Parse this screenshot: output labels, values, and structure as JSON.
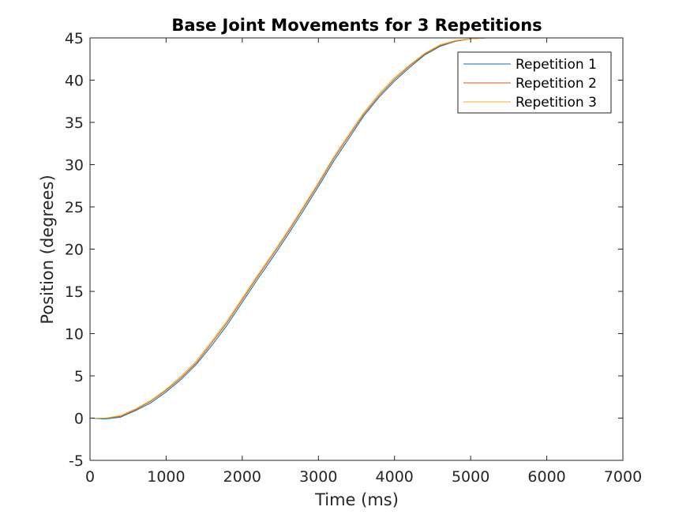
{
  "chart_data": {
    "type": "line",
    "title": "Base Joint Movements for 3 Repetitions",
    "xlabel": "Time (ms)",
    "ylabel": "Position (degrees)",
    "xlim": [
      0,
      7000
    ],
    "ylim": [
      -5,
      45
    ],
    "xticks": [
      0,
      1000,
      2000,
      3000,
      4000,
      5000,
      6000,
      7000
    ],
    "yticks": [
      -5,
      0,
      5,
      10,
      15,
      20,
      25,
      30,
      35,
      40,
      45
    ],
    "xtick_labels": [
      "0",
      "1000",
      "2000",
      "3000",
      "4000",
      "5000",
      "6000",
      "7000"
    ],
    "ytick_labels": [
      "-5",
      "0",
      "5",
      "10",
      "15",
      "20",
      "25",
      "30",
      "35",
      "40",
      "45"
    ],
    "grid": false,
    "legend_position": "top-right",
    "series": [
      {
        "name": "Repetition 1",
        "color": "#0072BD",
        "x": [
          0,
          200,
          400,
          500,
          600,
          800,
          1000,
          1200,
          1400,
          1600,
          1800,
          2000,
          2200,
          2400,
          2600,
          2800,
          3000,
          3200,
          3400,
          3600,
          3800,
          4000,
          4200,
          4400,
          4600,
          4800,
          5000,
          5200,
          5400,
          5600,
          5800,
          6000
        ],
        "y": [
          0,
          -0.1,
          0.1,
          0.5,
          0.9,
          1.8,
          3.1,
          4.6,
          6.4,
          8.6,
          11.0,
          13.7,
          16.4,
          19.0,
          21.7,
          24.5,
          27.4,
          30.4,
          33.1,
          35.8,
          38.0,
          39.9,
          41.5,
          43.0,
          44.0,
          44.6,
          44.9,
          45.0,
          45.0,
          45.0,
          45.0,
          45.0
        ]
      },
      {
        "name": "Repetition 2",
        "color": "#D95319",
        "x": [
          0,
          200,
          400,
          500,
          600,
          800,
          1000,
          1200,
          1400,
          1600,
          1800,
          2000,
          2200,
          2400,
          2600,
          2800,
          3000,
          3200,
          3400,
          3600,
          3800,
          4000,
          4200,
          4400,
          4600,
          4800,
          5000,
          5200,
          5400,
          5600,
          5800,
          6000
        ],
        "y": [
          0,
          0,
          0.2,
          0.6,
          1.0,
          2.0,
          3.3,
          4.8,
          6.6,
          8.9,
          11.3,
          14.0,
          16.7,
          19.3,
          22.0,
          24.8,
          27.7,
          30.7,
          33.4,
          36.0,
          38.2,
          40.1,
          41.7,
          43.1,
          44.1,
          44.6,
          44.9,
          45.0,
          45.0,
          45.0,
          45.0,
          45.0
        ]
      },
      {
        "name": "Repetition 3",
        "color": "#EDB120",
        "x": [
          0,
          200,
          400,
          500,
          600,
          800,
          1000,
          1200,
          1400,
          1600,
          1800,
          2000,
          2200,
          2400,
          2600,
          2800,
          3000,
          3200,
          3400,
          3600,
          3800,
          4000,
          4200,
          4400,
          4600,
          4800,
          5000,
          5200,
          5400,
          5600,
          5800,
          6000
        ],
        "y": [
          0,
          0,
          0.3,
          0.7,
          1.1,
          2.1,
          3.4,
          5.0,
          6.8,
          9.1,
          11.5,
          14.2,
          16.9,
          19.5,
          22.2,
          25.0,
          27.9,
          30.9,
          33.6,
          36.2,
          38.4,
          40.3,
          41.8,
          43.2,
          44.2,
          44.7,
          44.9,
          45.0,
          45.0,
          45.0,
          45.0,
          45.0
        ]
      }
    ]
  }
}
